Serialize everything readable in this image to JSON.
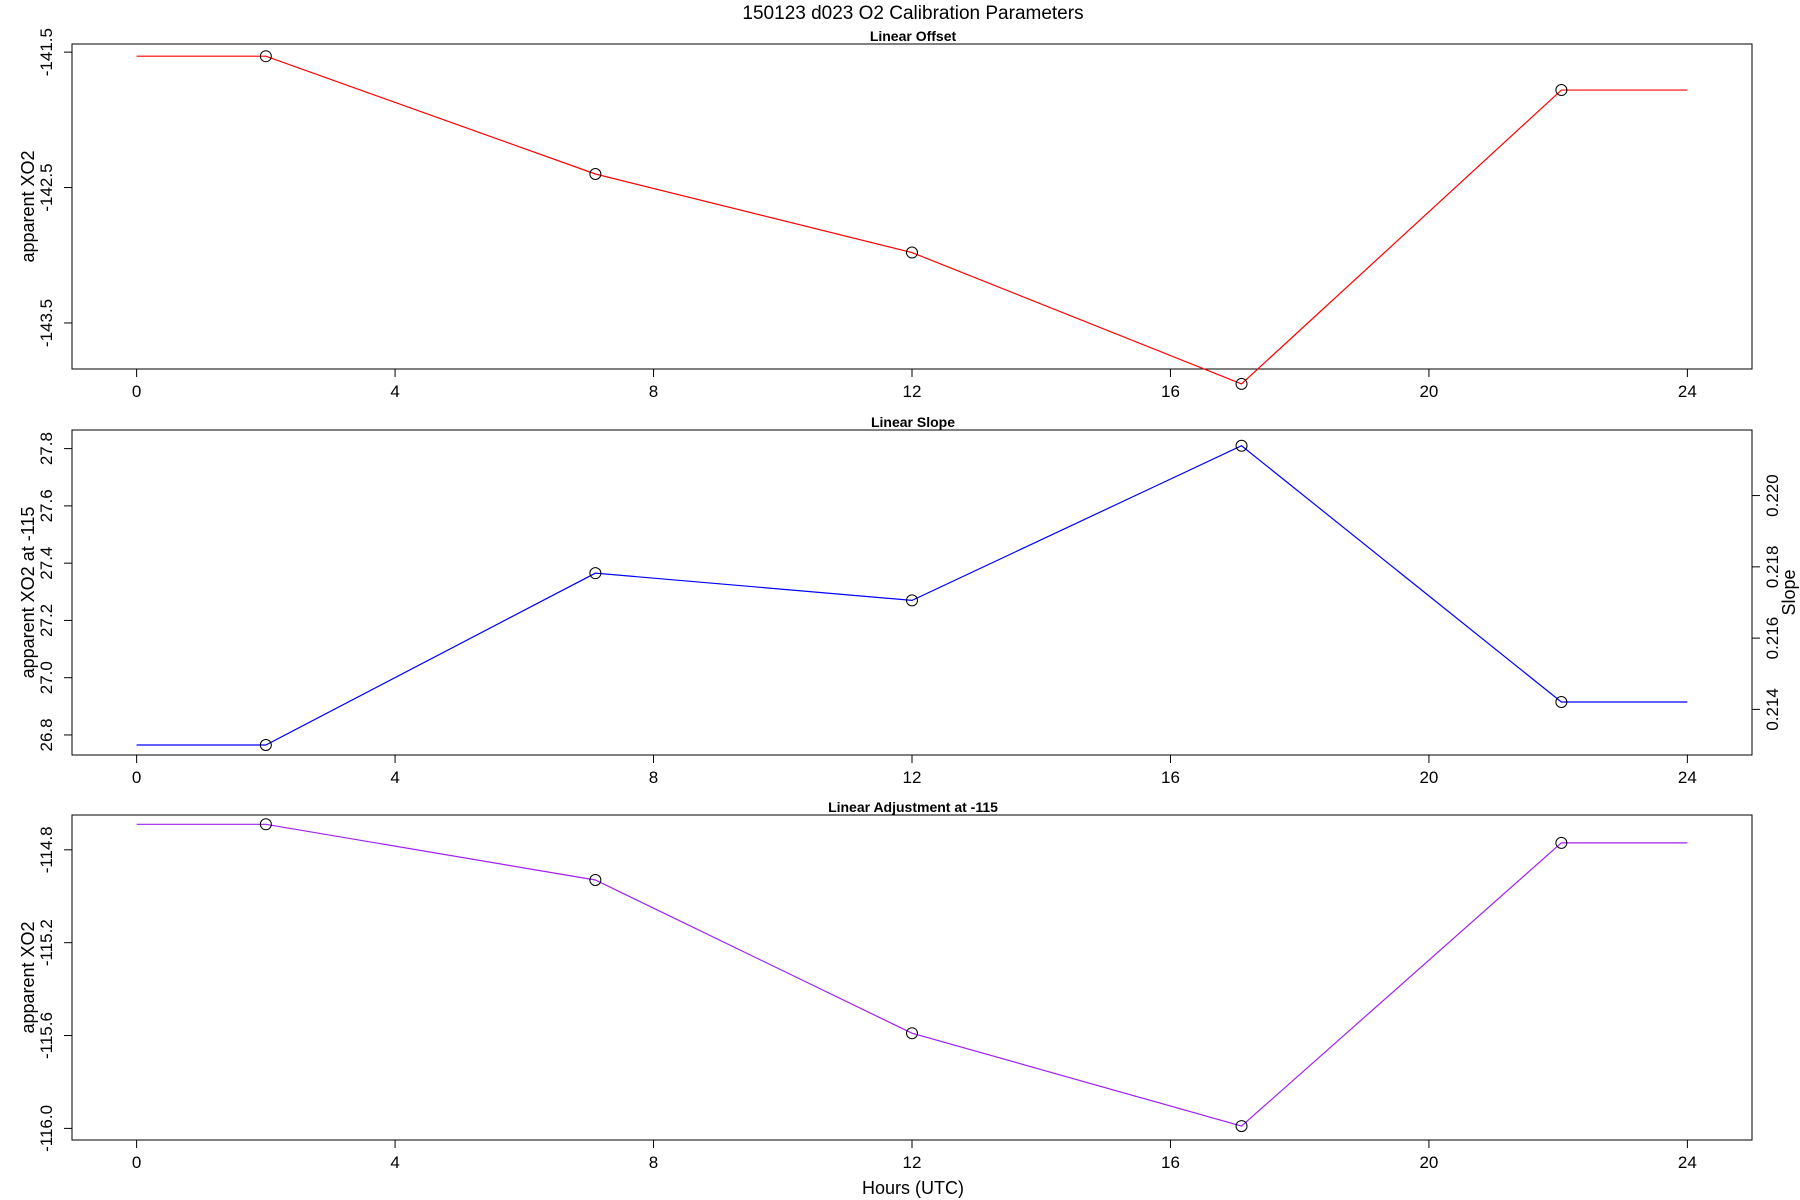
{
  "figure": {
    "title": "150123   d023   O2 Calibration Parameters",
    "xlabel": "Hours (UTC)"
  },
  "chart_data": [
    {
      "type": "line",
      "title": "Linear Offset",
      "xlabel": "",
      "ylabel": "apparent XO2",
      "xlim": [
        -1.0,
        25.0
      ],
      "ylim": [
        -143.84,
        -141.44
      ],
      "xticks": [
        0,
        4,
        8,
        12,
        16,
        20,
        24
      ],
      "yticks": [
        -141.5,
        -142.5,
        -143.5
      ],
      "ytick_labels": [
        "-141.5",
        "-142.5",
        "-143.5"
      ],
      "color": "#ff0000",
      "series": [
        {
          "x": [
            0,
            2.0,
            7.1,
            12.0,
            17.1,
            22.05,
            24
          ],
          "y": [
            -141.53,
            -141.53,
            -142.4,
            -142.98,
            -143.95,
            -141.78,
            -141.78
          ],
          "markers": [
            false,
            true,
            true,
            true,
            true,
            true,
            false
          ]
        }
      ]
    },
    {
      "type": "line",
      "title": "Linear Slope",
      "xlabel": "",
      "ylabel": "apparent XO2 at -115",
      "ylabel_right": "Slope",
      "xlim": [
        -1.0,
        25.0
      ],
      "ylim": [
        26.73,
        27.865
      ],
      "xticks": [
        0,
        4,
        8,
        12,
        16,
        20,
        24
      ],
      "yticks": [
        26.8,
        27.0,
        27.2,
        27.4,
        27.6,
        27.8
      ],
      "ytick_labels": [
        "26.8",
        "27.0",
        "27.2",
        "27.4",
        "27.6",
        "27.8"
      ],
      "ylim_right": [
        0.21272,
        0.22184
      ],
      "yticks_right": [
        0.214,
        0.216,
        0.218,
        0.22
      ],
      "ytick_labels_right": [
        "0.214",
        "0.216",
        "0.218",
        "0.220"
      ],
      "color": "#0000ff",
      "series": [
        {
          "x": [
            0,
            2.0,
            7.1,
            12.0,
            17.1,
            22.05,
            24
          ],
          "y": [
            26.765,
            26.765,
            27.365,
            27.27,
            27.81,
            26.915,
            26.915
          ],
          "markers": [
            false,
            true,
            true,
            true,
            true,
            true,
            false
          ]
        }
      ]
    },
    {
      "type": "line",
      "title": "Linear Adjustment at -115",
      "xlabel": "Hours (UTC)",
      "ylabel": "apparent XO2",
      "xlim": [
        -1.0,
        25.0
      ],
      "ylim": [
        -116.05,
        -114.65
      ],
      "xticks": [
        0,
        4,
        8,
        12,
        16,
        20,
        24
      ],
      "yticks": [
        -114.8,
        -115.2,
        -115.6,
        -116.0
      ],
      "ytick_labels": [
        "-114.8",
        "-115.2",
        "-115.6",
        "-116.0"
      ],
      "color": "#a020f0",
      "series": [
        {
          "x": [
            0,
            2.0,
            7.1,
            12.0,
            17.1,
            22.05,
            24
          ],
          "y": [
            -114.69,
            -114.69,
            -114.93,
            -115.59,
            -115.99,
            -114.77,
            -114.77
          ],
          "markers": [
            false,
            true,
            true,
            true,
            true,
            true,
            false
          ]
        }
      ]
    }
  ]
}
